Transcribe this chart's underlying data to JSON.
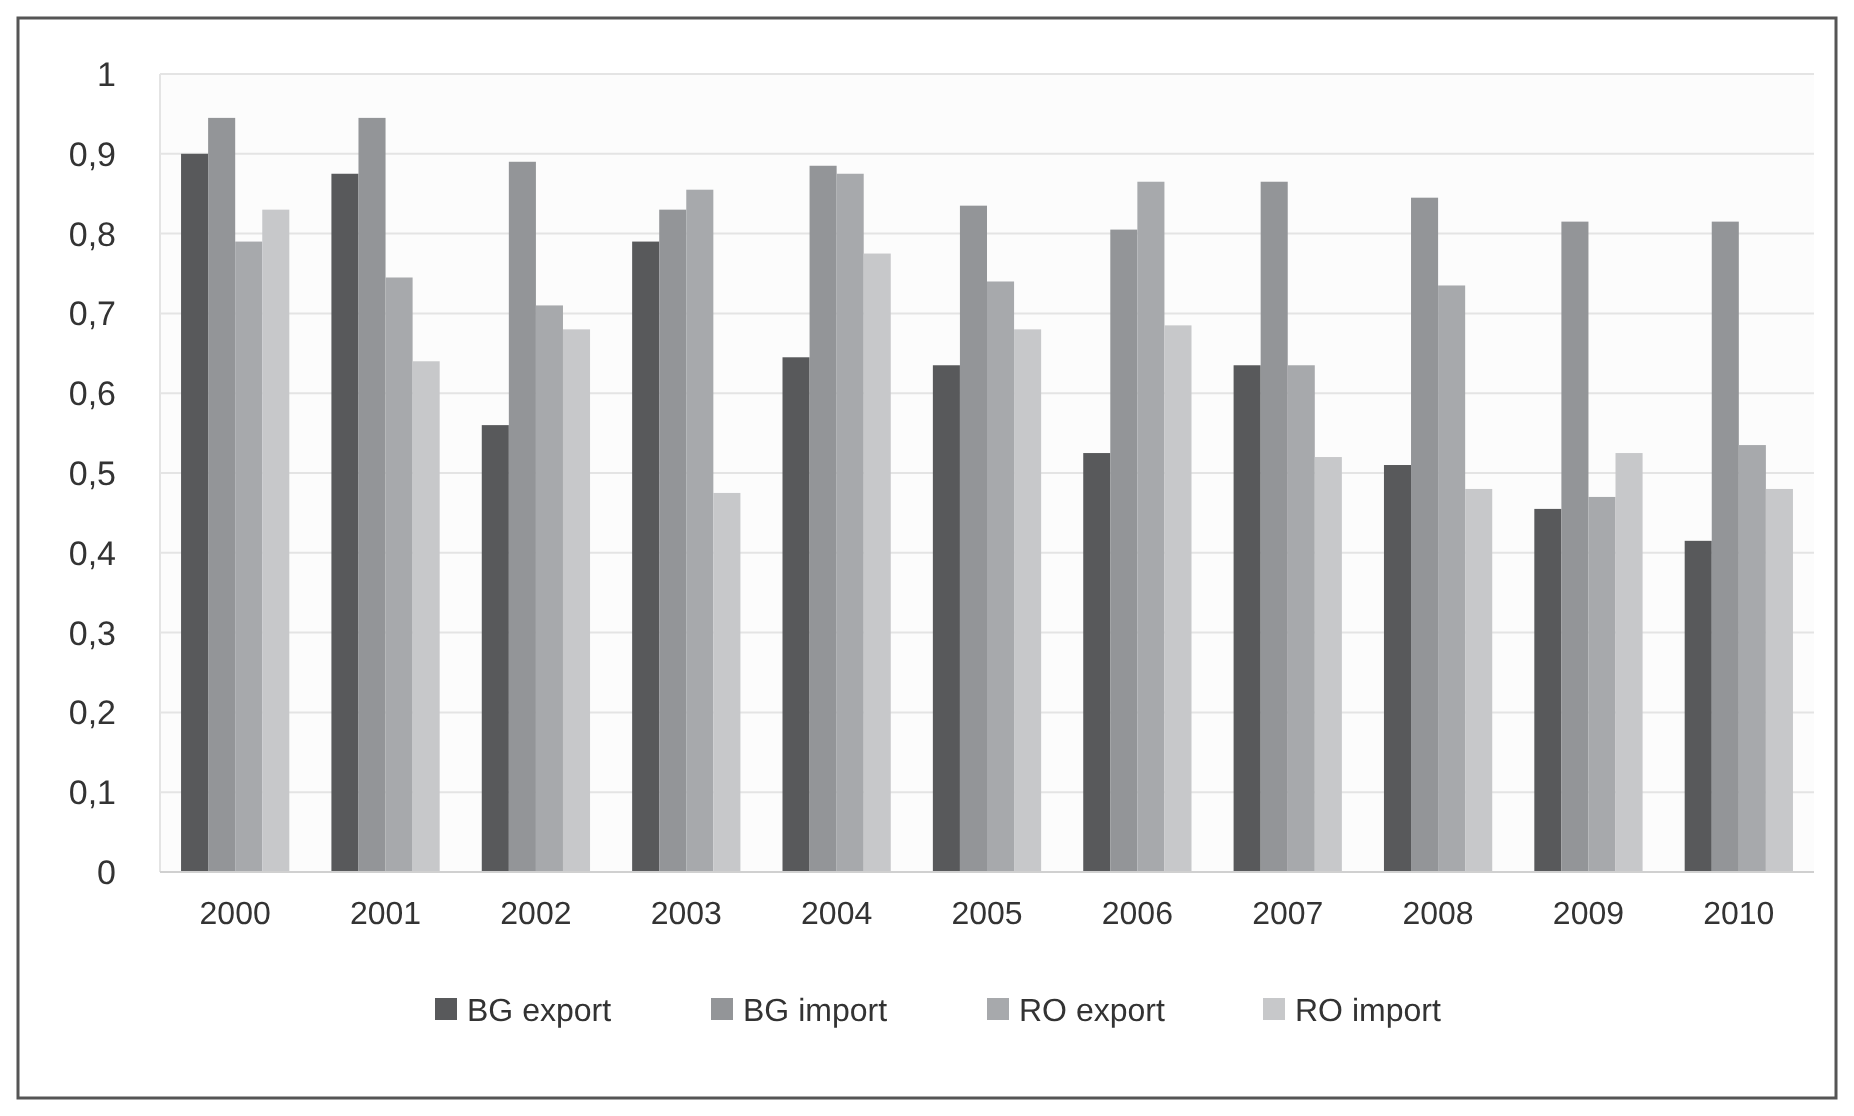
{
  "chart_data": {
    "type": "bar",
    "categories": [
      "2000",
      "2001",
      "2002",
      "2003",
      "2004",
      "2005",
      "2006",
      "2007",
      "2008",
      "2009",
      "2010"
    ],
    "series": [
      {
        "name": "BG export",
        "color": "#58595b",
        "values": [
          0.9,
          0.875,
          0.56,
          0.79,
          0.645,
          0.635,
          0.525,
          0.635,
          0.51,
          0.455,
          0.415
        ]
      },
      {
        "name": "BG import",
        "color": "#939598",
        "values": [
          0.945,
          0.945,
          0.89,
          0.83,
          0.885,
          0.835,
          0.805,
          0.865,
          0.845,
          0.815,
          0.815
        ]
      },
      {
        "name": "RO export",
        "color": "#a7a9ac",
        "values": [
          0.79,
          0.745,
          0.71,
          0.855,
          0.875,
          0.74,
          0.865,
          0.635,
          0.735,
          0.47,
          0.535
        ]
      },
      {
        "name": "RO import",
        "color": "#c7c8ca",
        "values": [
          0.83,
          0.64,
          0.68,
          0.475,
          0.775,
          0.68,
          0.685,
          0.52,
          0.48,
          0.525,
          0.48
        ]
      }
    ],
    "ylim": [
      0,
      1
    ],
    "yticks": [
      0,
      {
        "value": 0.1,
        "label": "0,1"
      },
      {
        "value": 0.2,
        "label": "0,2"
      },
      {
        "value": 0.3,
        "label": "0,3"
      },
      {
        "value": 0.4,
        "label": "0,4"
      },
      {
        "value": 0.5,
        "label": "0,5"
      },
      {
        "value": 0.6,
        "label": "0,6"
      },
      {
        "value": 0.7,
        "label": "0,7"
      },
      {
        "value": 0.8,
        "label": "0,8"
      },
      {
        "value": 0.9,
        "label": "0,9"
      },
      1
    ],
    "grid": "y",
    "legend": "bottom"
  }
}
